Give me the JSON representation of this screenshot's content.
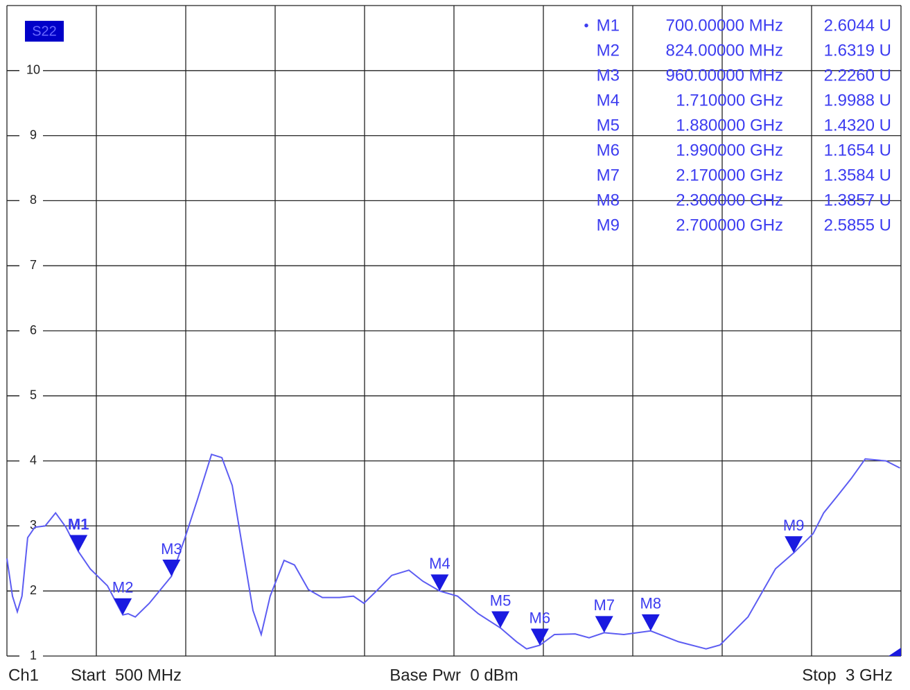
{
  "chart_data": {
    "type": "line",
    "trace_label": "S22",
    "x": [
      500,
      515.5,
      529,
      542,
      558,
      578,
      607,
      636,
      665,
      700,
      733,
      781,
      824,
      839,
      859,
      898,
      960,
      998,
      1033,
      1072,
      1101,
      1130,
      1159,
      1188,
      1211,
      1236,
      1275,
      1304,
      1343,
      1382,
      1430,
      1469,
      1498,
      1537,
      1576,
      1624,
      1663,
      1710,
      1760,
      1818,
      1880,
      1925,
      1953,
      1990,
      2031,
      2089,
      2128,
      2170,
      2225,
      2300,
      2378,
      2455,
      2494,
      2572,
      2649,
      2700,
      2754,
      2784,
      2822,
      2861,
      2900,
      2958,
      2997
    ],
    "series": [
      {
        "color": "#5c5cf2",
        "values": [
          2.5,
          1.92,
          1.68,
          1.92,
          2.82,
          2.98,
          3.0,
          3.2,
          2.98,
          2.6044,
          2.34,
          2.08,
          1.6319,
          1.65,
          1.6,
          1.81,
          2.226,
          2.82,
          3.41,
          4.1,
          4.05,
          3.62,
          2.66,
          1.7,
          1.33,
          1.92,
          2.47,
          2.4,
          2.02,
          1.9,
          1.9,
          1.92,
          1.81,
          2.02,
          2.24,
          2.32,
          2.15,
          1.9988,
          1.92,
          1.65,
          1.432,
          1.22,
          1.11,
          1.1654,
          1.33,
          1.34,
          1.28,
          1.3584,
          1.33,
          1.3857,
          1.22,
          1.11,
          1.17,
          1.6,
          2.34,
          2.5855,
          2.88,
          3.2,
          3.46,
          3.73,
          4.03,
          4.0,
          3.89
        ]
      }
    ],
    "xlim": [
      500,
      3000
    ],
    "ylim": [
      1,
      11
    ],
    "yticks": [
      1,
      2,
      3,
      4,
      5,
      6,
      7,
      8,
      9,
      10
    ],
    "grid": true,
    "active_symbol": "•",
    "markers": [
      {
        "name": "M1",
        "x": 700,
        "value": 2.6044,
        "x_label": "700.00000 MHz",
        "value_label": "2.6044 U"
      },
      {
        "name": "M2",
        "x": 824,
        "value": 1.6319,
        "x_label": "824.00000 MHz",
        "value_label": "1.6319 U"
      },
      {
        "name": "M3",
        "x": 960,
        "value": 2.226,
        "x_label": "960.00000 MHz",
        "value_label": "2.2260 U"
      },
      {
        "name": "M4",
        "x": 1710,
        "value": 1.9988,
        "x_label": "1.710000 GHz",
        "value_label": "1.9988 U"
      },
      {
        "name": "M5",
        "x": 1880,
        "value": 1.432,
        "x_label": "1.880000 GHz",
        "value_label": "1.4320 U"
      },
      {
        "name": "M6",
        "x": 1990,
        "value": 1.1654,
        "x_label": "1.990000 GHz",
        "value_label": "1.1654 U"
      },
      {
        "name": "M7",
        "x": 2170,
        "value": 1.3584,
        "x_label": "2.170000 GHz",
        "value_label": "1.3584 U"
      },
      {
        "name": "M8",
        "x": 2300,
        "value": 1.3857,
        "x_label": "2.300000 GHz",
        "value_label": "1.3857 U"
      },
      {
        "name": "M9",
        "x": 2700,
        "value": 2.5855,
        "x_label": "2.700000 GHz",
        "value_label": "2.5855 U"
      }
    ],
    "channel": "Ch1",
    "start_label": "Start  500 MHz",
    "base_power_label": "Base Pwr  0 dBm",
    "stop_label": "Stop  3 GHz"
  }
}
